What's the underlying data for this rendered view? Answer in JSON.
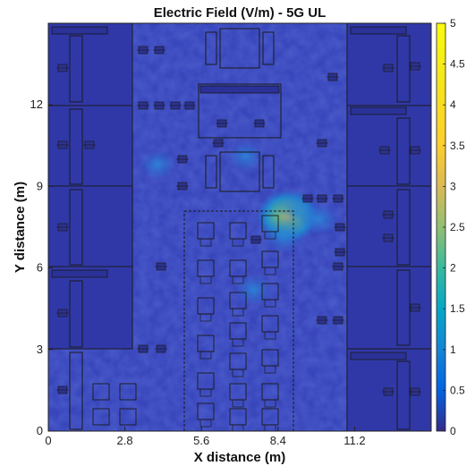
{
  "chart_data": {
    "type": "heatmap",
    "title": "Electric Field (V/m) - 5G UL",
    "xlabel": "X distance (m)",
    "ylabel": "Y distance (m)",
    "xlim": [
      0,
      14
    ],
    "ylim": [
      0,
      15
    ],
    "xticks": [
      0,
      2.8,
      5.6,
      8.4,
      11.2
    ],
    "xtick_labels": [
      "0",
      "2.8",
      "5.6",
      "8.4",
      "11.2"
    ],
    "yticks": [
      0,
      3,
      6,
      9,
      12
    ],
    "ytick_labels": [
      "0",
      "3",
      "6",
      "9",
      "12"
    ],
    "colorbar": {
      "min": 0,
      "max": 5,
      "ticks": [
        0,
        0.5,
        1,
        1.5,
        2,
        2.5,
        3,
        3.5,
        4,
        4.5,
        5
      ],
      "tick_labels": [
        "0",
        "0.5",
        "1",
        "1.5",
        "2",
        "2.5",
        "3",
        "3.5",
        "4",
        "4.5",
        "5"
      ],
      "colormap": "parula"
    },
    "background_value": 0.75,
    "hotspots": [
      {
        "x": 8.75,
        "y": 7.9,
        "value": 2.8
      },
      {
        "x": 9.1,
        "y": 8.1,
        "value": 1.8
      },
      {
        "x": 8.6,
        "y": 7.2,
        "value": 1.5
      },
      {
        "x": 9.9,
        "y": 7.8,
        "value": 1.3
      },
      {
        "x": 7.5,
        "y": 5.2,
        "value": 1.2
      },
      {
        "x": 4.0,
        "y": 9.8,
        "value": 1.1
      },
      {
        "x": 7.2,
        "y": 10.1,
        "value": 1.1
      }
    ],
    "legend": "colorbar-right",
    "grid": false
  },
  "colors": {
    "field_background": "#3440b8",
    "room_fill": "#3038a8",
    "outline": "#1a1a1a"
  }
}
